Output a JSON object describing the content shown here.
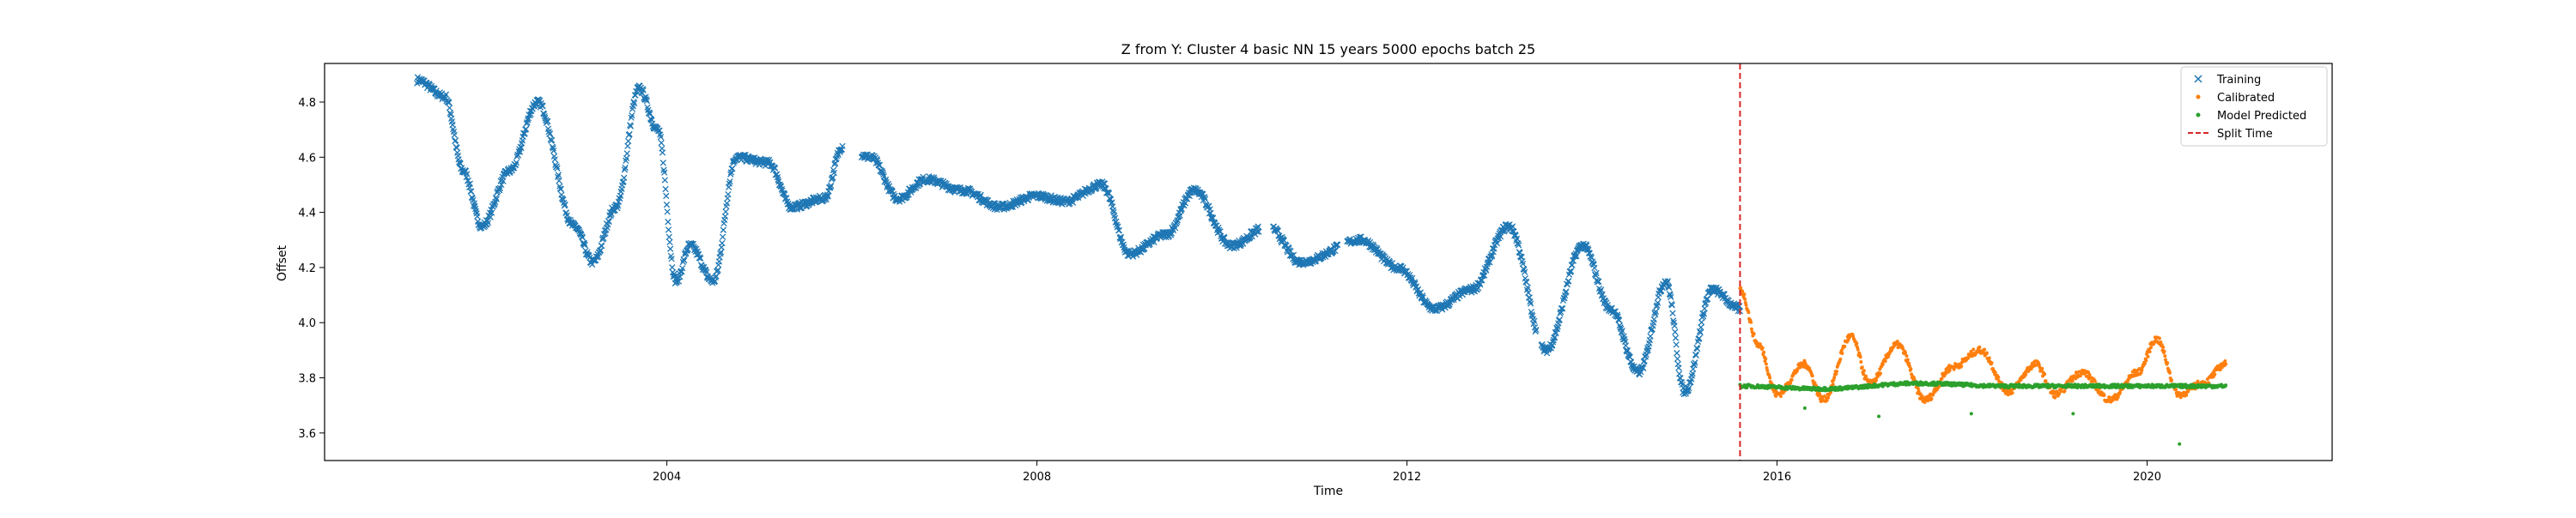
{
  "chart_data": {
    "type": "scatter",
    "title": "Z from Y: Cluster 4 basic NN 15 years 5000 epochs batch 25",
    "xlabel": "Time",
    "ylabel": "Offset",
    "xlim": [
      2000.3,
      2022.0
    ],
    "ylim": [
      3.5,
      4.94
    ],
    "x_ticks": [
      2004,
      2008,
      2012,
      2016,
      2020
    ],
    "x_tick_labels": [
      "2004",
      "2008",
      "2012",
      "2016",
      "2020"
    ],
    "y_ticks": [
      3.6,
      3.8,
      4.0,
      4.2,
      4.4,
      4.6,
      4.8
    ],
    "y_tick_labels": [
      "3.6",
      "3.8",
      "4.0",
      "4.2",
      "4.4",
      "4.6",
      "4.8"
    ],
    "grid": false,
    "legend_position": "top-right",
    "split_time": 2015.6,
    "series": [
      {
        "name": "Training",
        "marker": "x",
        "color": "#1f77b4",
        "x_range": [
          2001.3,
          2015.6
        ],
        "keypoints": [
          [
            2001.3,
            4.88
          ],
          [
            2001.6,
            4.82
          ],
          [
            2001.8,
            4.55
          ],
          [
            2002.0,
            4.35
          ],
          [
            2002.3,
            4.55
          ],
          [
            2002.6,
            4.8
          ],
          [
            2003.0,
            4.35
          ],
          [
            2003.2,
            4.22
          ],
          [
            2003.45,
            4.42
          ],
          [
            2003.7,
            4.85
          ],
          [
            2003.9,
            4.7
          ],
          [
            2004.1,
            4.15
          ],
          [
            2004.25,
            4.28
          ],
          [
            2004.5,
            4.15
          ],
          [
            2004.75,
            4.6
          ],
          [
            2005.1,
            4.58
          ],
          [
            2005.35,
            4.42
          ],
          [
            2005.7,
            4.45
          ],
          [
            2005.9,
            4.64
          ],
          [
            2006.2,
            4.6
          ],
          [
            2006.5,
            4.45
          ],
          [
            2006.8,
            4.52
          ],
          [
            2007.2,
            4.48
          ],
          [
            2007.6,
            4.42
          ],
          [
            2008.0,
            4.46
          ],
          [
            2008.3,
            4.44
          ],
          [
            2008.7,
            4.5
          ],
          [
            2009.0,
            4.25
          ],
          [
            2009.4,
            4.32
          ],
          [
            2009.7,
            4.48
          ],
          [
            2010.1,
            4.28
          ],
          [
            2010.5,
            4.35
          ],
          [
            2010.85,
            4.22
          ],
          [
            2011.5,
            4.3
          ],
          [
            2011.9,
            4.2
          ],
          [
            2012.3,
            4.05
          ],
          [
            2012.7,
            4.12
          ],
          [
            2013.1,
            4.35
          ],
          [
            2013.5,
            3.9
          ],
          [
            2013.9,
            4.28
          ],
          [
            2014.2,
            4.05
          ],
          [
            2014.5,
            3.82
          ],
          [
            2014.8,
            4.15
          ],
          [
            2015.0,
            3.75
          ],
          [
            2015.3,
            4.12
          ],
          [
            2015.6,
            4.05
          ]
        ]
      },
      {
        "name": "Calibrated",
        "marker": "dot",
        "color": "#ff7f0e",
        "x_range": [
          2015.6,
          2020.85
        ],
        "keypoints": [
          [
            2015.6,
            4.12
          ],
          [
            2015.8,
            3.92
          ],
          [
            2016.0,
            3.74
          ],
          [
            2016.3,
            3.85
          ],
          [
            2016.5,
            3.72
          ],
          [
            2016.8,
            3.95
          ],
          [
            2017.0,
            3.78
          ],
          [
            2017.3,
            3.92
          ],
          [
            2017.6,
            3.72
          ],
          [
            2017.9,
            3.84
          ],
          [
            2018.2,
            3.9
          ],
          [
            2018.5,
            3.75
          ],
          [
            2018.8,
            3.85
          ],
          [
            2019.0,
            3.74
          ],
          [
            2019.3,
            3.82
          ],
          [
            2019.6,
            3.72
          ],
          [
            2019.9,
            3.82
          ],
          [
            2020.1,
            3.94
          ],
          [
            2020.35,
            3.74
          ],
          [
            2020.6,
            3.78
          ],
          [
            2020.85,
            3.85
          ]
        ]
      },
      {
        "name": "Model Predicted",
        "marker": "dot",
        "color": "#2ca02c",
        "x_range": [
          2015.6,
          2020.85
        ],
        "keypoints": [
          [
            2015.6,
            3.77
          ],
          [
            2016.5,
            3.76
          ],
          [
            2017.5,
            3.78
          ],
          [
            2018.5,
            3.77
          ],
          [
            2019.5,
            3.77
          ],
          [
            2020.85,
            3.77
          ]
        ],
        "outliers": [
          [
            2016.3,
            3.69
          ],
          [
            2017.1,
            3.66
          ],
          [
            2018.1,
            3.67
          ],
          [
            2019.2,
            3.67
          ],
          [
            2020.35,
            3.56
          ]
        ]
      }
    ]
  },
  "legend": {
    "items": [
      {
        "label": "Training",
        "color": "#1f77b4",
        "marker": "x"
      },
      {
        "label": "Calibrated",
        "color": "#ff7f0e",
        "marker": "dot"
      },
      {
        "label": "Model Predicted",
        "color": "#2ca02c",
        "marker": "dot"
      },
      {
        "label": "Split Time",
        "color": "#d62728",
        "marker": "dashed-line"
      }
    ]
  }
}
